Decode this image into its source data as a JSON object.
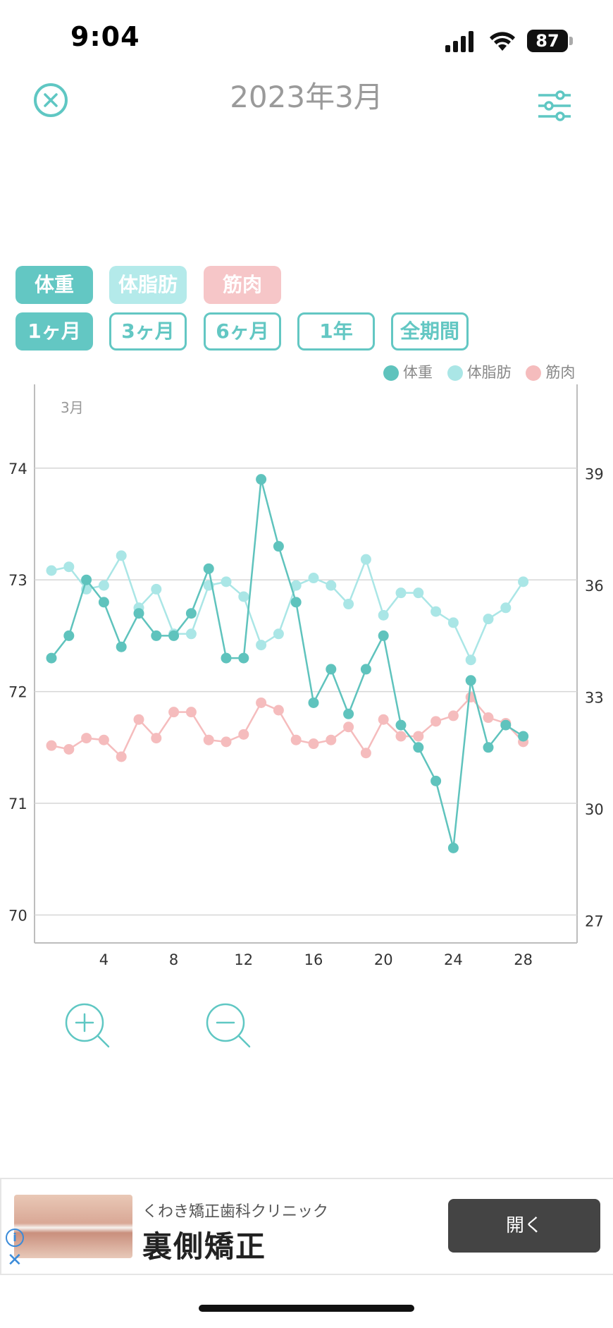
{
  "status": {
    "time": "9:04",
    "battery": "87"
  },
  "header": {
    "title": "2023年3月"
  },
  "metric_tabs": [
    {
      "label": "体重",
      "active": true
    },
    {
      "label": "体脂肪",
      "active": true
    },
    {
      "label": "筋肉",
      "active": true
    }
  ],
  "period_tabs": [
    {
      "label": "1ヶ月",
      "active": true
    },
    {
      "label": "3ヶ月",
      "active": false
    },
    {
      "label": "6ヶ月",
      "active": false
    },
    {
      "label": "1年",
      "active": false
    },
    {
      "label": "全期間",
      "active": false
    }
  ],
  "legend": [
    {
      "label": "体重",
      "color": "#5fc3bd"
    },
    {
      "label": "体脂肪",
      "color": "#aae6e6"
    },
    {
      "label": "筋肉",
      "color": "#f5bcbd"
    }
  ],
  "chart_data": {
    "type": "line",
    "month_label": "3月",
    "x": [
      1,
      2,
      3,
      4,
      5,
      6,
      7,
      8,
      9,
      10,
      11,
      12,
      13,
      14,
      15,
      16,
      17,
      18,
      19,
      20,
      21,
      22,
      23,
      24,
      25,
      26,
      27,
      28
    ],
    "x_ticks": [
      4,
      8,
      12,
      16,
      20,
      24,
      28
    ],
    "y_left_ticks": [
      70,
      71,
      72,
      73,
      74
    ],
    "y_left_range": [
      69.75,
      74.75
    ],
    "y_right_ticks": [
      27,
      30,
      33,
      36,
      39
    ],
    "y_right_range": [
      26.4,
      41.4
    ],
    "grid": true,
    "legend_position": "top-right",
    "series": [
      {
        "name": "体重",
        "axis": "left",
        "color": "#5fc3bd",
        "values": [
          72.3,
          72.5,
          73.0,
          72.8,
          72.4,
          72.7,
          72.5,
          72.5,
          72.7,
          73.1,
          72.3,
          72.3,
          73.9,
          73.3,
          72.8,
          71.9,
          72.2,
          71.8,
          72.2,
          72.5,
          71.7,
          71.5,
          71.2,
          70.6,
          72.1,
          71.5,
          71.7,
          71.6
        ]
      },
      {
        "name": "体脂肪",
        "axis": "right",
        "color": "#aae6e6",
        "values": [
          36.4,
          36.5,
          35.9,
          36.0,
          36.8,
          35.4,
          35.9,
          34.7,
          34.7,
          36.0,
          36.1,
          35.7,
          34.4,
          34.7,
          36.0,
          36.2,
          36.0,
          35.5,
          36.7,
          35.2,
          35.8,
          35.8,
          35.3,
          35.0,
          34.0,
          35.1,
          35.4,
          36.1
        ]
      },
      {
        "name": "筋肉",
        "axis": "right",
        "color": "#f5bcbd",
        "values": [
          31.7,
          31.6,
          31.9,
          31.85,
          31.4,
          32.4,
          31.9,
          32.6,
          32.6,
          31.85,
          31.8,
          32.0,
          32.85,
          32.65,
          31.85,
          31.75,
          31.85,
          32.2,
          31.5,
          32.4,
          31.95,
          31.95,
          32.35,
          32.5,
          33.0,
          32.45,
          32.3,
          31.8
        ]
      }
    ]
  },
  "ad": {
    "advertiser": "くわき矯正歯科クリニック",
    "headline": "裏側矯正",
    "cta": "開く"
  }
}
